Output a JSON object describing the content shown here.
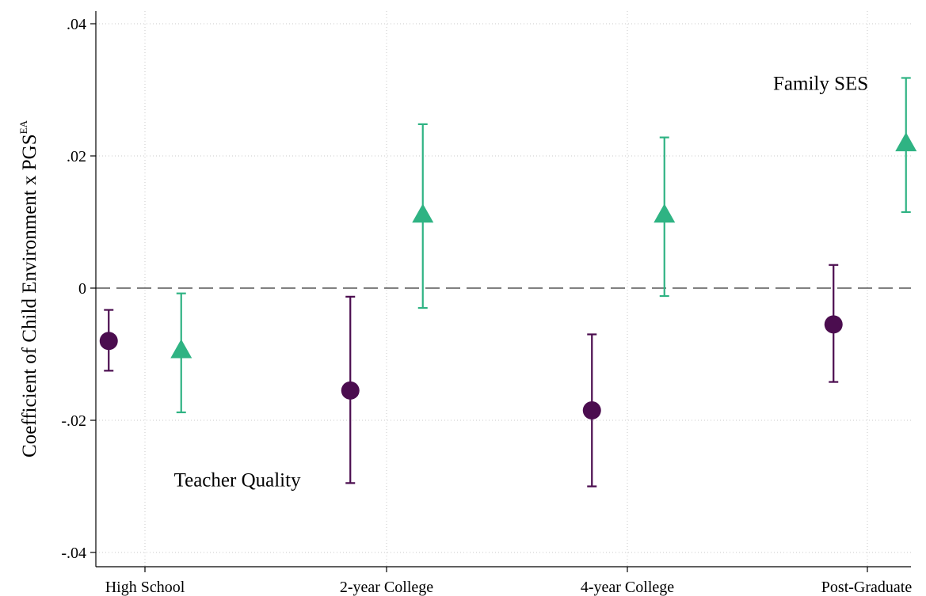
{
  "chart_data": {
    "type": "scatter",
    "subtype": "coefficient plot with 95% confidence intervals",
    "categories": [
      "High School",
      "2-year College",
      "4-year College",
      "Post-Graduate"
    ],
    "ylabel": {
      "main": "Coefficient of Child Environment x PGS",
      "superscript": "EA"
    },
    "ylim": [
      -0.04,
      0.04
    ],
    "yticks": [
      {
        "value": 0.04,
        "label": ".04"
      },
      {
        "value": 0.02,
        "label": ".02"
      },
      {
        "value": 0,
        "label": "0"
      },
      {
        "value": -0.02,
        "label": "-.02"
      },
      {
        "value": -0.04,
        "label": "-.04"
      }
    ],
    "grid": true,
    "reference_line": 0,
    "series": [
      {
        "name": "Teacher Quality",
        "color": "#4b0d4f",
        "marker": "circle",
        "offset": -0.15,
        "estimates": [
          -0.008,
          -0.0155,
          -0.0185,
          -0.0055
        ],
        "ci_low": [
          -0.0125,
          -0.0295,
          -0.03,
          -0.0142
        ],
        "ci_high": [
          -0.0033,
          -0.0013,
          -0.007,
          0.0035
        ]
      },
      {
        "name": "Family SES",
        "color": "#2fb383",
        "marker": "triangle",
        "offset": 0.15,
        "estimates": [
          -0.0095,
          0.011,
          0.011,
          0.0218
        ],
        "ci_low": [
          -0.0188,
          -0.003,
          -0.0012,
          0.0115
        ],
        "ci_high": [
          -0.0008,
          0.0248,
          0.0228,
          0.0318
        ]
      }
    ],
    "annotations": [
      {
        "text": "Family SES",
        "series": "Family SES",
        "x": 2.6,
        "y": 0.03
      },
      {
        "text": "Teacher Quality",
        "series": "Teacher Quality",
        "x": 0.12,
        "y": -0.03
      }
    ]
  }
}
